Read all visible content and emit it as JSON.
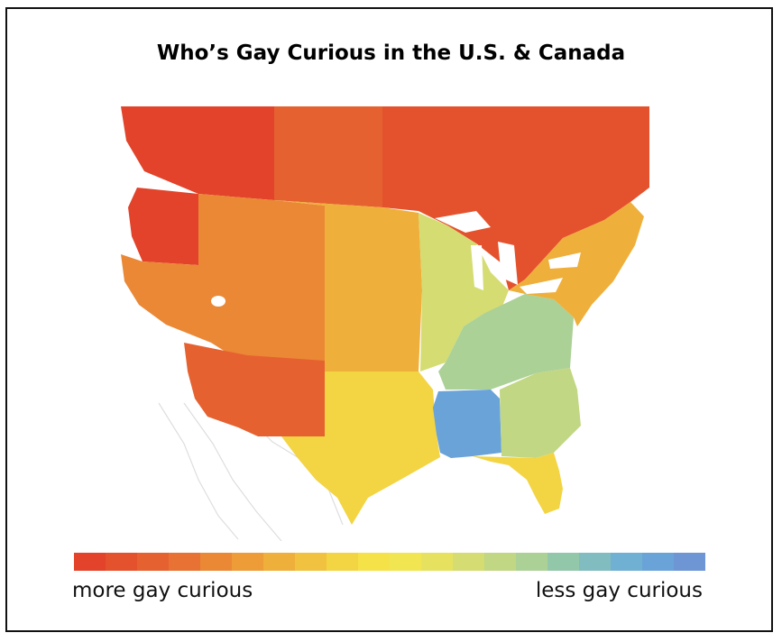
{
  "title": "Who’s Gay Curious in the U.S. & Canada",
  "legend": {
    "left_label": "more gay curious",
    "right_label": "less gay curious",
    "colors": [
      "#e2432a",
      "#e4522d",
      "#e66130",
      "#e77234",
      "#ea8836",
      "#ed9c38",
      "#efaf3b",
      "#f1c23f",
      "#f3d443",
      "#f5e249",
      "#f2e552",
      "#e6e260",
      "#d4dc72",
      "#c1d784",
      "#abd196",
      "#93c7aa",
      "#80bcc0",
      "#70b1d3",
      "#6aa3d8",
      "#6e96d4"
    ]
  },
  "regions": [
    {
      "name": "canada-west",
      "color": "#e2432a"
    },
    {
      "name": "canada-prairies",
      "color": "#e66130"
    },
    {
      "name": "canada-east",
      "color": "#e4522d"
    },
    {
      "name": "pacific-northwest",
      "color": "#e2432a"
    },
    {
      "name": "mountain-west",
      "color": "#ea8836"
    },
    {
      "name": "southwest",
      "color": "#e66130"
    },
    {
      "name": "great-plains",
      "color": "#efaf3b"
    },
    {
      "name": "texas",
      "color": "#f3d443"
    },
    {
      "name": "midwest",
      "color": "#d4dc72"
    },
    {
      "name": "ohio-valley",
      "color": "#abd196"
    },
    {
      "name": "deep-south",
      "color": "#6aa3d8"
    },
    {
      "name": "southeast",
      "color": "#c1d784"
    },
    {
      "name": "northeast",
      "color": "#efaf3b"
    },
    {
      "name": "florida",
      "color": "#f3d443"
    }
  ]
}
